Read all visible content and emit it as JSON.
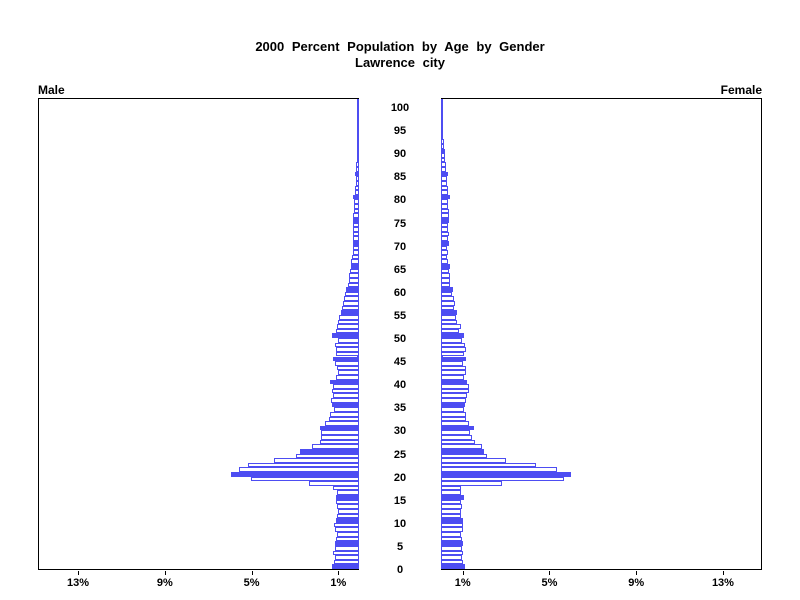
{
  "title": {
    "line1": "2000 Percent Population by Age by Gender",
    "line2": "Lawrence city"
  },
  "panels": {
    "left_header": "Male",
    "right_header": "Female"
  },
  "axes": {
    "percent_ticks": [
      {
        "value": 1,
        "label": "1%"
      },
      {
        "value": 5,
        "label": "5%"
      },
      {
        "value": 9,
        "label": "9%"
      },
      {
        "value": 13,
        "label": "13%"
      }
    ],
    "age_tick_values": [
      0,
      5,
      10,
      15,
      20,
      25,
      30,
      35,
      40,
      45,
      50,
      55,
      60,
      65,
      70,
      75,
      80,
      85,
      90,
      95,
      100
    ],
    "xlim": [
      0,
      14.8
    ]
  },
  "colors": {
    "bar_blue": "#4d4df2",
    "open_bar_fill": "#ffffff",
    "axis_black": "#000000"
  },
  "chart_data": {
    "type": "bar",
    "subtype": "population_pyramid",
    "title": "2000 Percent Population by Age by Gender",
    "subtitle": "Lawrence city",
    "x_unit": "percent",
    "age_min": 0,
    "age_max": 100,
    "solid_bar_every": 5,
    "xlim": [
      0,
      14.8
    ],
    "x_tick_values": [
      1,
      5,
      9,
      13
    ],
    "x_tick_labels": [
      "1%",
      "5%",
      "9%",
      "13%"
    ],
    "legend_position": "top-outside",
    "grid": false,
    "series": [
      {
        "name": "Male",
        "side": "left",
        "values": [
          1.25,
          1.15,
          1.1,
          1.2,
          1.1,
          1.1,
          1.05,
          1.0,
          1.1,
          1.15,
          1.05,
          1.0,
          0.95,
          1.0,
          1.05,
          1.05,
          1.0,
          1.2,
          2.3,
          5.0,
          5.9,
          5.55,
          5.1,
          3.9,
          2.9,
          2.7,
          2.15,
          1.8,
          1.75,
          1.75,
          1.8,
          1.55,
          1.4,
          1.35,
          1.15,
          1.25,
          1.3,
          1.2,
          1.25,
          1.2,
          1.35,
          1.05,
          0.95,
          1.0,
          1.1,
          1.2,
          1.05,
          1.05,
          1.1,
          0.95,
          1.25,
          1.05,
          1.0,
          0.95,
          0.9,
          0.85,
          0.8,
          0.75,
          0.7,
          0.65,
          0.6,
          0.5,
          0.47,
          0.45,
          0.4,
          0.38,
          0.35,
          0.33,
          0.3,
          0.28,
          0.3,
          0.28,
          0.3,
          0.28,
          0.26,
          0.3,
          0.28,
          0.25,
          0.25,
          0.22,
          0.28,
          0.2,
          0.18,
          0.16,
          0.15,
          0.18,
          0.13,
          0.12,
          0.1,
          0.08,
          0.1,
          0.07,
          0.06,
          0.05,
          0.04,
          0.05,
          0.03,
          0.03,
          0.02,
          0.01,
          0.03
        ]
      },
      {
        "name": "Female",
        "side": "right",
        "values": [
          1.1,
          1.0,
          0.95,
          1.0,
          0.95,
          1.0,
          0.95,
          0.9,
          1.0,
          1.0,
          1.0,
          0.9,
          0.9,
          0.95,
          0.9,
          1.05,
          0.9,
          0.9,
          2.8,
          5.65,
          6.0,
          5.35,
          4.4,
          3.0,
          2.1,
          2.0,
          1.9,
          1.55,
          1.45,
          1.35,
          1.5,
          1.3,
          1.15,
          1.15,
          1.05,
          1.1,
          1.15,
          1.2,
          1.3,
          1.3,
          1.2,
          1.05,
          1.15,
          1.15,
          1.0,
          1.15,
          1.05,
          1.15,
          1.1,
          0.95,
          1.05,
          0.85,
          0.9,
          0.75,
          0.7,
          0.75,
          0.62,
          0.66,
          0.62,
          0.5,
          0.55,
          0.4,
          0.43,
          0.4,
          0.35,
          0.4,
          0.32,
          0.28,
          0.32,
          0.28,
          0.35,
          0.33,
          0.35,
          0.33,
          0.32,
          0.38,
          0.36,
          0.35,
          0.33,
          0.3,
          0.4,
          0.33,
          0.3,
          0.28,
          0.26,
          0.3,
          0.25,
          0.22,
          0.2,
          0.17,
          0.2,
          0.14,
          0.12,
          0.1,
          0.08,
          0.08,
          0.05,
          0.04,
          0.03,
          0.02,
          0.04
        ]
      }
    ]
  }
}
